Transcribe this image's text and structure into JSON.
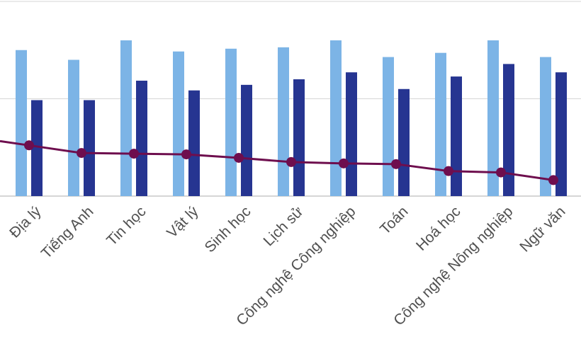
{
  "chart_data": {
    "type": "bar",
    "categories": [
      "Địa lý",
      "Tiếng Anh",
      "Tin học",
      "Vật lý",
      "Sinh học",
      "Lịch sử",
      "Công nghệ Công nghiệp",
      "Toán",
      "Hoá học",
      "Công nghệ Nông nghiệp",
      "Ngữ văn"
    ],
    "series": [
      {
        "type": "bar",
        "color": "#7cb4e6",
        "values": [
          105,
          98,
          112,
          104,
          106,
          107,
          112,
          100,
          103,
          112,
          100
        ]
      },
      {
        "type": "bar",
        "color": "#263591",
        "values": [
          69,
          69,
          83,
          76,
          80,
          84,
          89,
          77,
          86,
          95,
          89
        ]
      },
      {
        "type": "line",
        "color": "#6e0e4e",
        "values": [
          36.5,
          31,
          30.5,
          30,
          27.5,
          24.5,
          23.5,
          23,
          18,
          17,
          11.5
        ]
      }
    ],
    "ylim": [
      0,
      140
    ],
    "yticks": [
      0,
      70,
      140
    ],
    "grid": true,
    "legend": "none"
  }
}
